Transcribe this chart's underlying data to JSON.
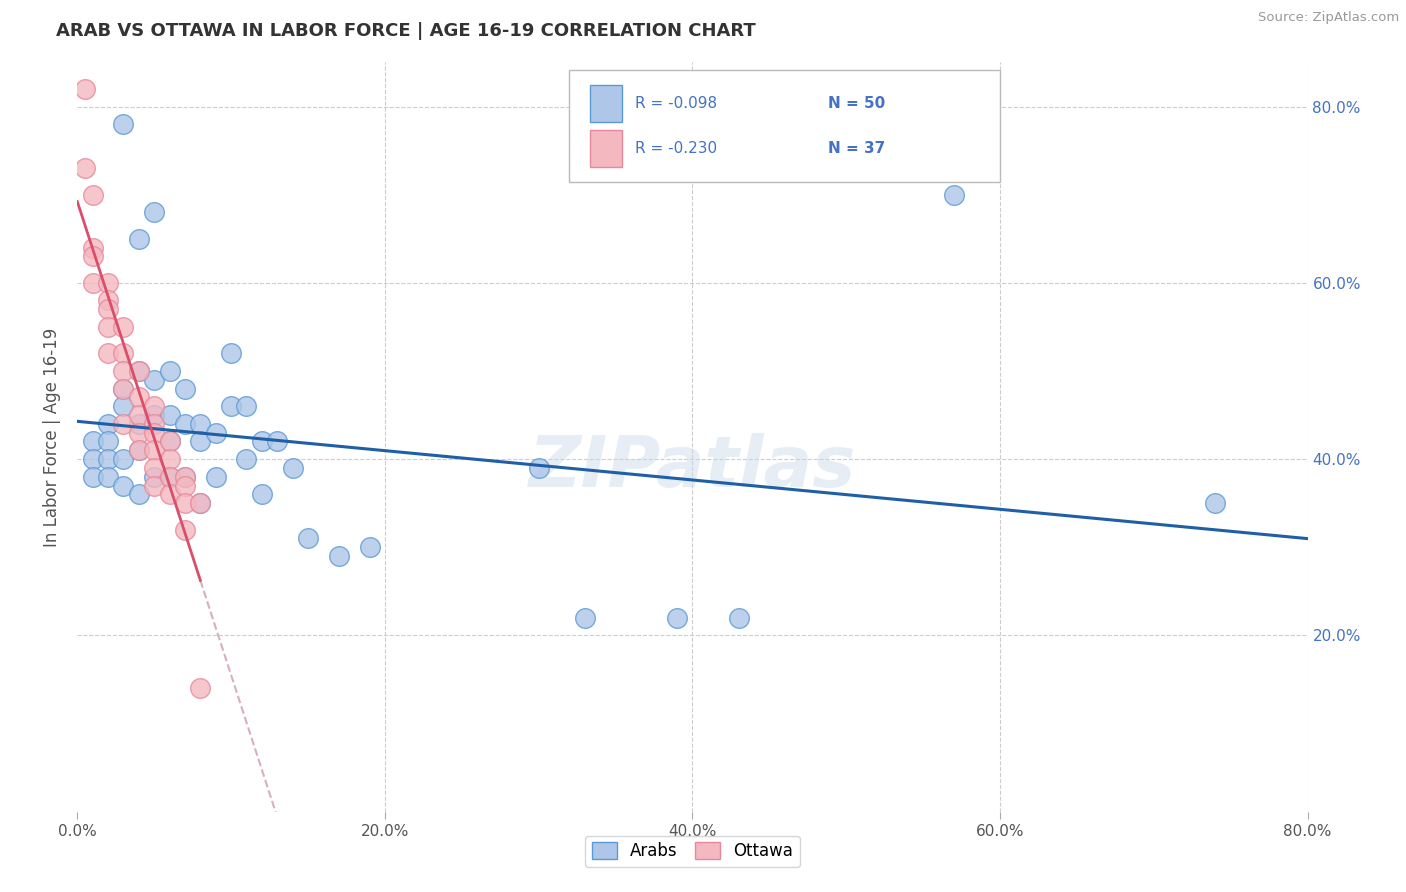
{
  "title": "ARAB VS OTTAWA IN LABOR FORCE | AGE 16-19 CORRELATION CHART",
  "source": "Source: ZipAtlas.com",
  "ylabel": "In Labor Force | Age 16-19",
  "xlim": [
    0.0,
    0.8
  ],
  "ylim": [
    0.0,
    0.85
  ],
  "xticks": [
    0.0,
    0.2,
    0.4,
    0.6,
    0.8
  ],
  "yticks": [
    0.0,
    0.2,
    0.4,
    0.6,
    0.8
  ],
  "arab_color": "#aec6e8",
  "ottawa_color": "#f4b8c1",
  "arab_edge": "#5b9bd5",
  "ottawa_edge": "#e8889a",
  "trendline_arab_color": "#1f5fa6",
  "trendline_ottawa_color": "#d94f6b",
  "R_arab": -0.098,
  "N_arab": 50,
  "R_ottawa": -0.23,
  "N_ottawa": 37,
  "legend_label_arab": "Arabs",
  "legend_label_ottawa": "Ottawa",
  "watermark": "ZIPatlas",
  "background_color": "#ffffff",
  "grid_color": "#cccccc",
  "title_color": "#333333",
  "right_tick_color": "#4472c4",
  "arab_points_x": [
    0.03,
    0.01,
    0.01,
    0.01,
    0.02,
    0.02,
    0.02,
    0.02,
    0.03,
    0.03,
    0.03,
    0.03,
    0.04,
    0.04,
    0.04,
    0.04,
    0.04,
    0.05,
    0.05,
    0.05,
    0.05,
    0.06,
    0.06,
    0.06,
    0.06,
    0.07,
    0.07,
    0.07,
    0.08,
    0.08,
    0.08,
    0.09,
    0.09,
    0.1,
    0.1,
    0.11,
    0.11,
    0.12,
    0.12,
    0.13,
    0.14,
    0.15,
    0.17,
    0.19,
    0.3,
    0.33,
    0.39,
    0.43,
    0.57,
    0.74
  ],
  "arab_points_y": [
    0.78,
    0.42,
    0.4,
    0.38,
    0.44,
    0.42,
    0.4,
    0.38,
    0.48,
    0.46,
    0.4,
    0.37,
    0.65,
    0.5,
    0.44,
    0.41,
    0.36,
    0.68,
    0.49,
    0.45,
    0.38,
    0.5,
    0.45,
    0.42,
    0.38,
    0.48,
    0.44,
    0.38,
    0.44,
    0.42,
    0.35,
    0.43,
    0.38,
    0.52,
    0.46,
    0.46,
    0.4,
    0.42,
    0.36,
    0.42,
    0.39,
    0.31,
    0.29,
    0.3,
    0.39,
    0.22,
    0.22,
    0.22,
    0.7,
    0.35
  ],
  "ottawa_points_x": [
    0.005,
    0.005,
    0.01,
    0.01,
    0.01,
    0.01,
    0.02,
    0.02,
    0.02,
    0.02,
    0.02,
    0.03,
    0.03,
    0.03,
    0.03,
    0.03,
    0.04,
    0.04,
    0.04,
    0.04,
    0.04,
    0.05,
    0.05,
    0.05,
    0.05,
    0.05,
    0.05,
    0.06,
    0.06,
    0.06,
    0.06,
    0.07,
    0.07,
    0.07,
    0.07,
    0.08,
    0.08
  ],
  "ottawa_points_y": [
    0.82,
    0.73,
    0.7,
    0.64,
    0.63,
    0.6,
    0.6,
    0.58,
    0.57,
    0.55,
    0.52,
    0.55,
    0.52,
    0.5,
    0.48,
    0.44,
    0.5,
    0.47,
    0.45,
    0.43,
    0.41,
    0.46,
    0.44,
    0.43,
    0.41,
    0.39,
    0.37,
    0.42,
    0.4,
    0.38,
    0.36,
    0.38,
    0.37,
    0.35,
    0.32,
    0.35,
    0.14
  ]
}
